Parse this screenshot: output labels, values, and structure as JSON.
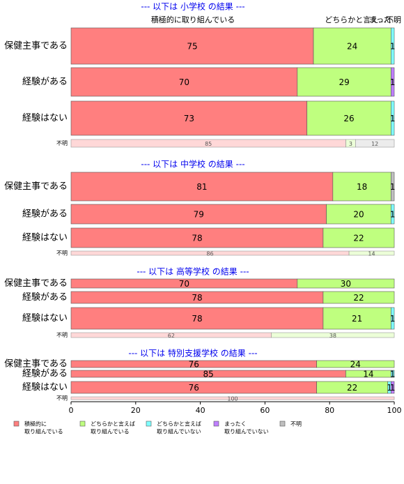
{
  "chart_data": {
    "type": "bar",
    "orientation": "horizontal",
    "stacked": true,
    "xlim": [
      0,
      100
    ],
    "xticks": [
      0,
      20,
      40,
      60,
      80,
      100
    ],
    "header_labels": [
      "積極的に取り組んでいる",
      "どちらかと言え...",
      "まった...",
      "不明"
    ],
    "series": [
      {
        "name": [
          "積極的に",
          "取り組んでいる"
        ],
        "color": "#ff7f7f"
      },
      {
        "name": [
          "どちらかと言えば",
          "取り組んでいる"
        ],
        "color": "#bfff7f"
      },
      {
        "name": [
          "どちらかと言えば",
          "取り組んでいない"
        ],
        "color": "#7fffff"
      },
      {
        "name": [
          "まったく",
          "取り組んでいない"
        ],
        "color": "#bf7fff"
      },
      {
        "name": [
          "不明"
        ],
        "color": "#bfbfbf"
      }
    ],
    "sections": [
      {
        "title": "--- 以下は 小学校 の結果 ---",
        "rows": [
          {
            "label": "保健主事である",
            "values": [
              75,
              24,
              1,
              null,
              null
            ]
          },
          {
            "label": "経験がある",
            "values": [
              70,
              29,
              null,
              1,
              null
            ]
          },
          {
            "label": "経験はない",
            "values": [
              73,
              26,
              1,
              null,
              null
            ]
          },
          {
            "label": "不明",
            "values": [
              85,
              3,
              null,
              null,
              12
            ]
          }
        ]
      },
      {
        "title": "--- 以下は 中学校 の結果 ---",
        "rows": [
          {
            "label": "保健主事である",
            "values": [
              81,
              18,
              null,
              null,
              1
            ]
          },
          {
            "label": "経験がある",
            "values": [
              79,
              20,
              1,
              null,
              null
            ]
          },
          {
            "label": "経験はない",
            "values": [
              78,
              22,
              null,
              null,
              null
            ]
          },
          {
            "label": "不明",
            "values": [
              86,
              14,
              null,
              null,
              null
            ]
          }
        ]
      },
      {
        "title": "--- 以下は 高等学校 の結果 ---",
        "rows": [
          {
            "label": "保健主事である",
            "values": [
              70,
              30,
              null,
              null,
              null
            ]
          },
          {
            "label": "経験がある",
            "values": [
              78,
              22,
              null,
              null,
              null
            ]
          },
          {
            "label": "経験はない",
            "values": [
              78,
              21,
              1,
              null,
              null
            ]
          },
          {
            "label": "不明",
            "values": [
              62,
              38,
              null,
              null,
              null
            ]
          }
        ]
      },
      {
        "title": "--- 以下は 特別支援学校 の結果 ---",
        "rows": [
          {
            "label": "保健主事である",
            "values": [
              76,
              24,
              null,
              null,
              null
            ]
          },
          {
            "label": "経験がある",
            "values": [
              85,
              14,
              1,
              null,
              null
            ]
          },
          {
            "label": "経験はない",
            "values": [
              76,
              22,
              1,
              1,
              null
            ]
          },
          {
            "label": "不明",
            "values": [
              100,
              null,
              null,
              null,
              null
            ]
          }
        ]
      }
    ]
  }
}
